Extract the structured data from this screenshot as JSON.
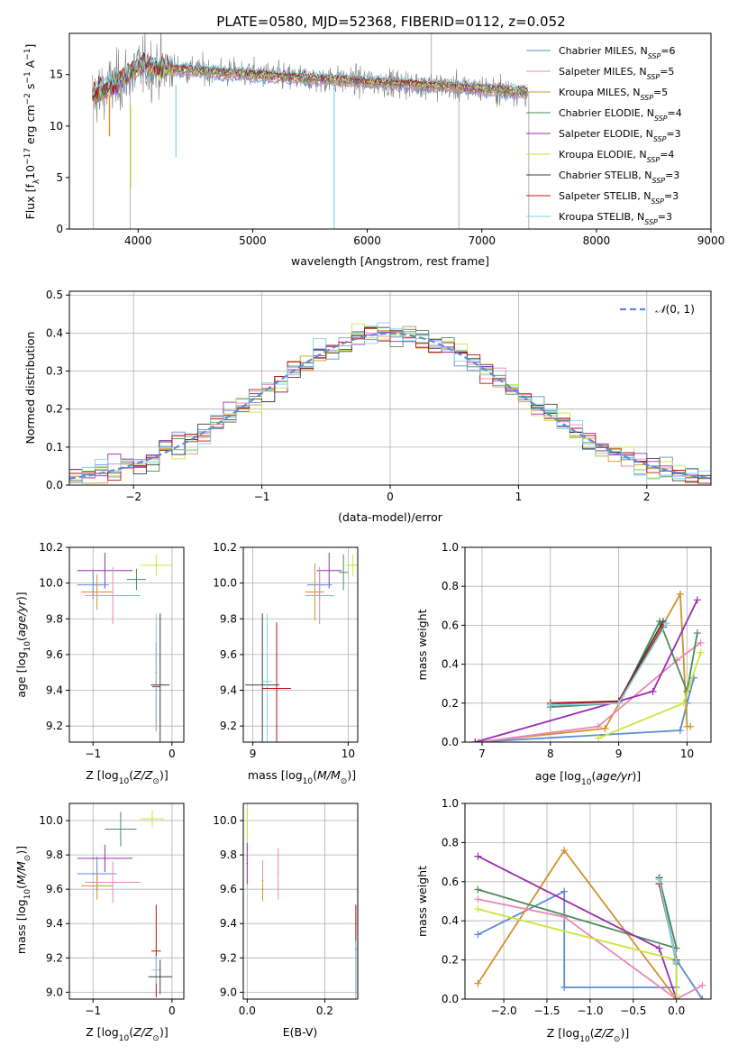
{
  "figure": {
    "title": "PLATE=0580, MJD=52368, FIBERID=0112, z=0.052"
  },
  "chart_data": [
    {
      "id": "spectrum",
      "type": "line",
      "xlabel": "wavelength [Angstrom, rest frame]",
      "ylabel": "Flux [f_λ 10^-17 erg cm^-2 s^-1 A^-1]",
      "xlim": [
        3400,
        9000
      ],
      "ylim": [
        0,
        19
      ],
      "xticks": [
        4000,
        5000,
        6000,
        7000,
        8000,
        9000
      ],
      "yticks": [
        0,
        5,
        10,
        15
      ],
      "legend_position": "top-right",
      "series": [
        {
          "name": "Chabrier MILES, N_SSP=6",
          "color": "#5b8bd6"
        },
        {
          "name": "Salpeter MILES, N_SSP=5",
          "color": "#e987b8"
        },
        {
          "name": "Kroupa MILES, N_SSP=5",
          "color": "#d1922f"
        },
        {
          "name": "Chabrier ELODIE, N_SSP=4",
          "color": "#4d8a5a"
        },
        {
          "name": "Salpeter ELODIE, N_SSP=3",
          "color": "#9a2cb0"
        },
        {
          "name": "Kroupa ELODIE, N_SSP=4",
          "color": "#c9e63a"
        },
        {
          "name": "Chabrier STELIB, N_SSP=3",
          "color": "#404040"
        },
        {
          "name": "Salpeter STELIB, N_SSP=3",
          "color": "#b81414"
        },
        {
          "name": "Kroupa STELIB, N_SSP=3",
          "color": "#7fd6e6"
        }
      ],
      "data_color": "#808080",
      "continuum": [
        [
          3600,
          13.0
        ],
        [
          3800,
          14.0
        ],
        [
          4000,
          15.8
        ],
        [
          4500,
          15.4
        ],
        [
          5000,
          15.0
        ],
        [
          5500,
          14.6
        ],
        [
          6000,
          14.3
        ],
        [
          6500,
          14.0
        ],
        [
          7000,
          13.6
        ],
        [
          7400,
          13.3
        ]
      ]
    },
    {
      "id": "residuals",
      "type": "histogram",
      "xlabel": "(data-model)/error",
      "ylabel": "Normed distribution",
      "xlim": [
        -2.5,
        2.5
      ],
      "ylim": [
        0,
        0.51
      ],
      "xticks": [
        -2,
        -1,
        0,
        1,
        2
      ],
      "yticks": [
        0.0,
        0.1,
        0.2,
        0.3,
        0.4,
        0.5
      ],
      "legend": [
        {
          "name": "N(0,1)",
          "color": "#5b8bd6",
          "style": "dashed"
        }
      ],
      "bin_width": 0.1
    },
    {
      "id": "age-vs-Z",
      "type": "scatter",
      "xlabel": "Z [log10(Z/Z⊙)]",
      "ylabel": "age  [log10(age/yr)]",
      "xlim": [
        -1.3,
        0.15
      ],
      "ylim": [
        9.11,
        10.2
      ],
      "xticks": [
        -1,
        0
      ],
      "yticks": [
        9.2,
        9.4,
        9.6,
        9.8,
        10.0,
        10.2
      ]
    },
    {
      "id": "age-vs-mass",
      "type": "scatter",
      "xlabel": "mass [log10(M/M⊙)]",
      "ylabel": "",
      "xlim": [
        8.9,
        10.1
      ],
      "ylim": [
        9.11,
        10.2
      ],
      "xticks": [
        9,
        10
      ],
      "yticks": [
        9.2,
        9.4,
        9.6,
        9.8,
        10.0,
        10.2
      ]
    },
    {
      "id": "weight-vs-age",
      "type": "line",
      "xlabel": "age  [log10(age/yr)]",
      "ylabel": "mass weight",
      "xlim": [
        6.75,
        10.35
      ],
      "ylim": [
        0,
        1.0
      ],
      "xticks": [
        7,
        8,
        9,
        10
      ],
      "yticks": [
        0.0,
        0.2,
        0.4,
        0.6,
        0.8,
        1.0
      ],
      "series": [
        {
          "color": "#5b8bd6",
          "x": [
            6.9,
            9.9,
            10.0,
            10.1
          ],
          "y": [
            0.0,
            0.06,
            0.2,
            0.33
          ]
        },
        {
          "color": "#d1922f",
          "x": [
            6.9,
            8.8,
            9.9,
            10.0,
            10.05
          ],
          "y": [
            0.0,
            0.07,
            0.76,
            0.08,
            0.08
          ]
        },
        {
          "color": "#e987b8",
          "x": [
            6.95,
            8.7,
            9.85,
            10.2
          ],
          "y": [
            0.0,
            0.08,
            0.42,
            0.51
          ]
        },
        {
          "color": "#4d8a5a",
          "x": [
            8.0,
            9.0,
            9.6,
            10.0,
            10.15
          ],
          "y": [
            0.18,
            0.2,
            0.62,
            0.26,
            0.56
          ]
        },
        {
          "color": "#9a2cb0",
          "x": [
            6.9,
            9.0,
            9.5,
            10.15
          ],
          "y": [
            0.0,
            0.21,
            0.26,
            0.73
          ]
        },
        {
          "color": "#c9e63a",
          "x": [
            8.7,
            9.95,
            10.2
          ],
          "y": [
            0.02,
            0.2,
            0.46
          ]
        },
        {
          "color": "#404040",
          "x": [
            8.0,
            9.0,
            9.65
          ],
          "y": [
            0.19,
            0.21,
            0.62
          ]
        },
        {
          "color": "#b81414",
          "x": [
            8.0,
            9.0,
            9.65
          ],
          "y": [
            0.2,
            0.21,
            0.59
          ]
        },
        {
          "color": "#7fd6e6",
          "x": [
            8.0,
            9.0,
            9.7
          ],
          "y": [
            0.19,
            0.2,
            0.61
          ]
        }
      ]
    },
    {
      "id": "mass-vs-Z",
      "type": "scatter",
      "xlabel": "Z [log10(Z/Z⊙)]",
      "ylabel": "mass [log10(M/M⊙)]",
      "xlim": [
        -1.3,
        0.15
      ],
      "ylim": [
        8.96,
        10.1
      ],
      "xticks": [
        -1,
        0
      ],
      "yticks": [
        9.0,
        9.2,
        9.4,
        9.6,
        9.8,
        10.0
      ]
    },
    {
      "id": "mass-vs-ebv",
      "type": "scatter",
      "xlabel": "E(B-V)",
      "ylabel": "",
      "xlim": [
        -0.01,
        0.285
      ],
      "ylim": [
        8.96,
        10.1
      ],
      "xticks": [
        0.0,
        0.2
      ],
      "yticks": [
        9.0,
        9.2,
        9.4,
        9.6,
        9.8,
        10.0
      ]
    },
    {
      "id": "weight-vs-Z",
      "type": "line",
      "xlabel": "Z [log10(Z/Z⊙)]",
      "ylabel": "mass weight",
      "xlim": [
        -2.45,
        0.4
      ],
      "ylim": [
        0,
        1.0
      ],
      "xticks": [
        -2.0,
        -1.5,
        -1.0,
        -0.5,
        0.0
      ],
      "yticks": [
        0.0,
        0.2,
        0.4,
        0.6,
        0.8,
        1.0
      ],
      "series": [
        {
          "color": "#5b8bd6",
          "x": [
            -2.3,
            -1.3,
            -1.3,
            0.0,
            0.0,
            0.3
          ],
          "y": [
            0.33,
            0.55,
            0.06,
            0.06,
            0.2,
            0.0
          ]
        },
        {
          "color": "#d1922f",
          "x": [
            -2.3,
            -1.3,
            0.0
          ],
          "y": [
            0.08,
            0.76,
            0.0
          ]
        },
        {
          "color": "#e987b8",
          "x": [
            -2.3,
            -1.3,
            0.0,
            0.3
          ],
          "y": [
            0.51,
            0.42,
            0.0,
            0.07
          ]
        },
        {
          "color": "#4d8a5a",
          "x": [
            -2.3,
            0.0,
            -0.2,
            0.0
          ],
          "y": [
            0.56,
            0.26,
            0.62,
            0.18
          ]
        },
        {
          "color": "#9a2cb0",
          "x": [
            -2.3,
            -0.2,
            0.0
          ],
          "y": [
            0.73,
            0.26,
            0.0
          ]
        },
        {
          "color": "#c9e63a",
          "x": [
            -2.3,
            0.0,
            0.0
          ],
          "y": [
            0.46,
            0.2,
            0.02
          ]
        },
        {
          "color": "#404040",
          "x": [
            -0.2,
            0.0
          ],
          "y": [
            0.62,
            0.19
          ]
        },
        {
          "color": "#b81414",
          "x": [
            -0.2,
            0.0
          ],
          "y": [
            0.59,
            0.2
          ]
        },
        {
          "color": "#7fd6e6",
          "x": [
            -0.2,
            0.0
          ],
          "y": [
            0.61,
            0.19
          ]
        }
      ]
    }
  ]
}
